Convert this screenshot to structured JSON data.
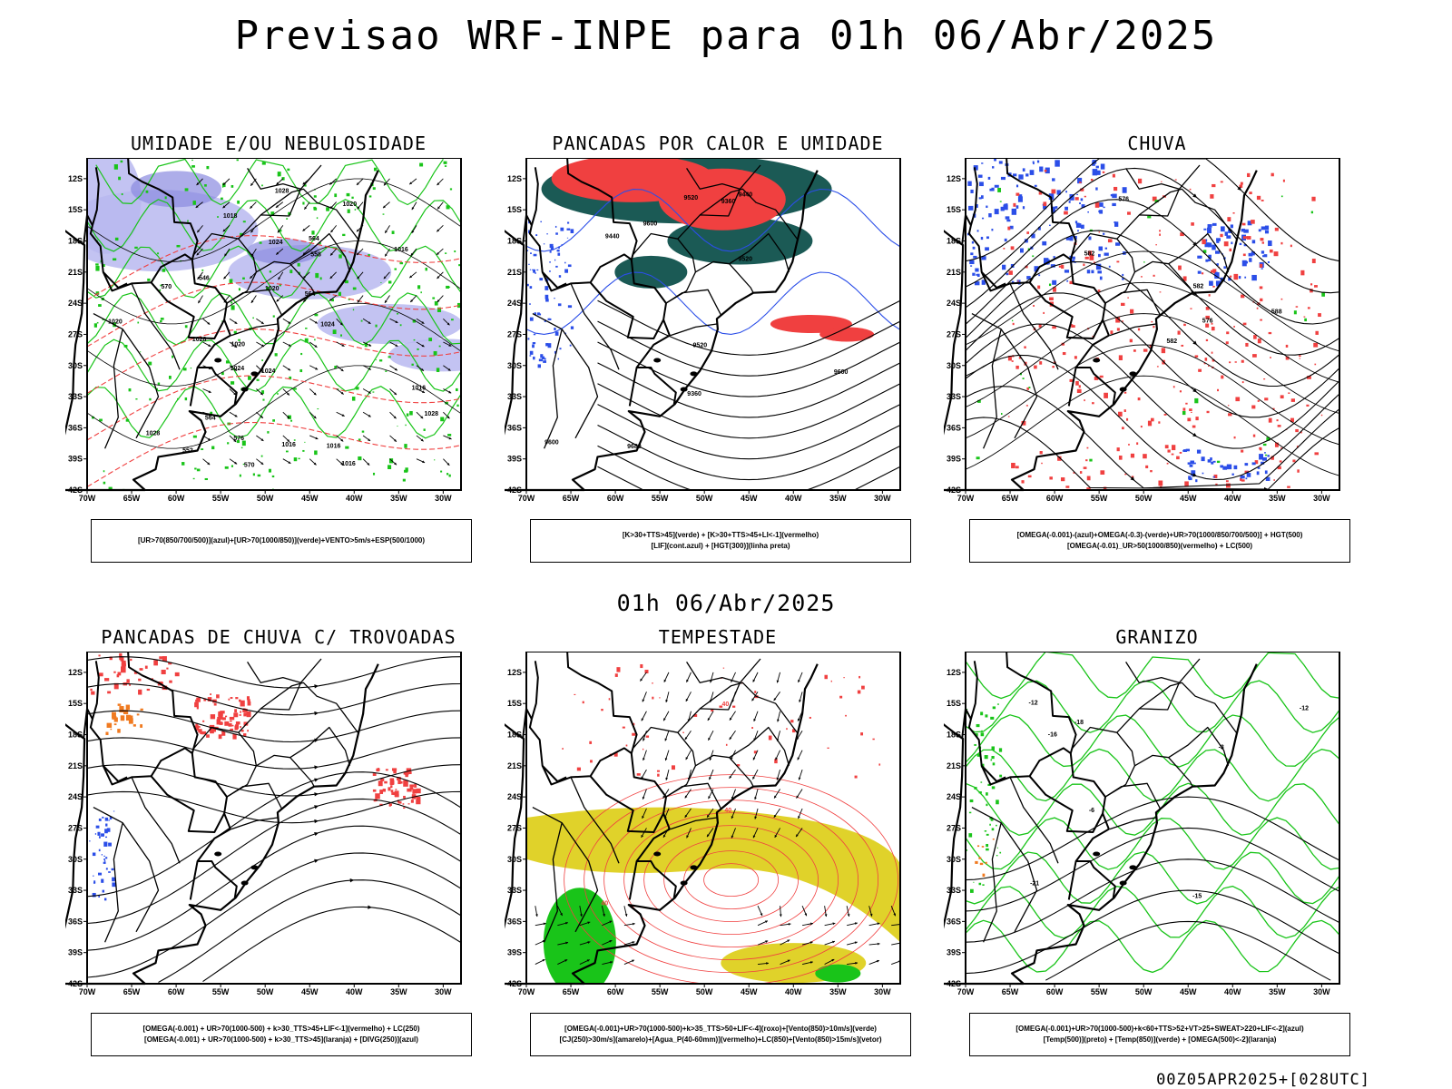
{
  "title": "Previsao WRF-INPE  para 01h 06/Abr/2025",
  "mid_title": "01h 06/Abr/2025",
  "footer": "00Z05APR2025+[028UTC]",
  "axes": {
    "lon_labels": [
      "70W",
      "65W",
      "60W",
      "55W",
      "50W",
      "45W",
      "40W",
      "35W",
      "30W"
    ],
    "lat_labels": [
      "12S",
      "15S",
      "18S",
      "21S",
      "24S",
      "27S",
      "30S",
      "33S",
      "36S",
      "39S",
      "42S"
    ]
  },
  "colors": {
    "blue": "#2b4ee8",
    "green": "#19c419",
    "red": "#f04040",
    "dark": "#1b5a55",
    "yellow": "#e0d22a",
    "orange": "#f07a20",
    "lavender": "#b8b8f0",
    "contour": "#000000"
  },
  "chart_data": [
    {
      "type": "heatmap",
      "title": "UMIDADE E/OU NEBULOSIDADE",
      "caption": [
        "[UR>70(850/700/500)](azul)+[UR>70(1000/850)](verde)+VENTO>5m/s+ESP(500/1000)"
      ],
      "xlim": [
        -70,
        -28
      ],
      "ylim": [
        -42,
        -10
      ],
      "contour_labels": [
        "1016",
        "1016",
        "1016",
        "1016",
        "1020",
        "1024",
        "1020",
        "1024",
        "1020",
        "1020",
        "1024",
        "1028",
        "1028",
        "1028",
        "1028",
        "1024",
        "576",
        "570",
        "570",
        "564",
        "564",
        "564",
        "558",
        "552",
        "546",
        "1018",
        "1016"
      ]
    },
    {
      "type": "heatmap",
      "title": "PANCADAS POR CALOR E UMIDADE",
      "caption": [
        "[K>30+TTS>45](verde)  +  [K>30+TTS>45+LI<-1](vermelho)",
        "[LIF](cont.azul)  +  [HGT(300)](linha preta)"
      ],
      "xlim": [
        -70,
        -28
      ],
      "ylim": [
        -42,
        -10
      ],
      "contour_labels": [
        "9680",
        "9600",
        "9520",
        "9600",
        "9600",
        "9520",
        "9440",
        "9360",
        "9520",
        "9440",
        "9360"
      ]
    },
    {
      "type": "heatmap",
      "title": "CHUVA",
      "caption": [
        "[OMEGA(-0.001)-(azul)+OMEGA(-0.3)-(verde)+UR>70(1000/850/700/500)]  +  HGT(500)",
        "[OMEGA(-0.01)_UR>50(1000/850)(vermelho)  +  LC(500)"
      ],
      "xlim": [
        -70,
        -28
      ],
      "ylim": [
        -42,
        -10
      ],
      "contour_labels": [
        "588",
        "582",
        "582",
        "576",
        "576",
        "582"
      ]
    },
    {
      "type": "heatmap",
      "title": "PANCADAS DE CHUVA C/ TROVOADAS",
      "caption": [
        "[OMEGA(-0.001)  +  UR>70(1000-500)  +  k>30_TTS>45+LIF<-1](vermelho)  +  LC(250)",
        "[OMEGA(-0.001)  +  UR>70(1000-500)  +  k>30_TTS>45](laranja)  +  [DIVG(250)](azul)"
      ],
      "xlim": [
        -70,
        -28
      ],
      "ylim": [
        -42,
        -10
      ],
      "contour_labels": []
    },
    {
      "type": "heatmap",
      "title": "TEMPESTADE",
      "caption": [
        "[OMEGA(-0.001)+UR>70(1000-500)+k>35_TTS>50+LIF<-4](roxo)+[Vento(850)>10m/s](verde)",
        "[CJ(250)>30m/s](amarelo)+[Agua_P(40-60mm)](vermelho)+LC(850)+[Vento(850)>15m/s](vetor)"
      ],
      "xlim": [
        -70,
        -28
      ],
      "ylim": [
        -42,
        -10
      ],
      "contour_labels": [
        "40",
        "40",
        "40"
      ]
    },
    {
      "type": "heatmap",
      "title": "GRANIZO",
      "caption": [
        "[OMEGA(-0.001)+UR>70(1000-500)+k<60+TTS>52+VT>25+SWEAT>220+LIF<-2](azul)",
        "[Temp(500)](preto)  +  [Temp(850)](verde)  +  [OMEGA(500)<-2](laranja)"
      ],
      "xlim": [
        -70,
        -28
      ],
      "ylim": [
        -42,
        -10
      ],
      "contour_labels": [
        "-12",
        "-15",
        "-18",
        "-21",
        "-16",
        "-12",
        "-6",
        "-3"
      ]
    }
  ]
}
